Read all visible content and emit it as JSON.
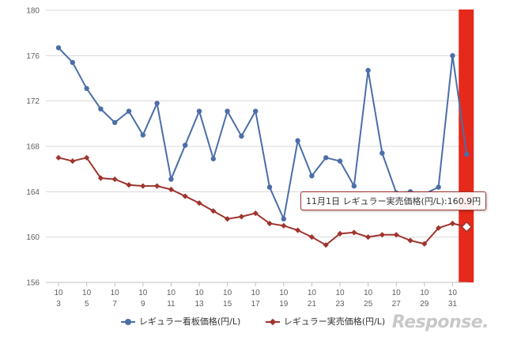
{
  "chart_data": {
    "type": "line",
    "title": "",
    "xlabel": "",
    "ylabel": "",
    "ylim": [
      156,
      180
    ],
    "yticks": [
      156,
      160,
      164,
      168,
      172,
      176,
      180
    ],
    "x_tick_labels": [
      {
        "month": "10",
        "day": "3"
      },
      {
        "month": "10",
        "day": "5"
      },
      {
        "month": "10",
        "day": "7"
      },
      {
        "month": "10",
        "day": "9"
      },
      {
        "month": "10",
        "day": "11"
      },
      {
        "month": "10",
        "day": "13"
      },
      {
        "month": "10",
        "day": "15"
      },
      {
        "month": "10",
        "day": "17"
      },
      {
        "month": "10",
        "day": "19"
      },
      {
        "month": "10",
        "day": "21"
      },
      {
        "month": "10",
        "day": "23"
      },
      {
        "month": "10",
        "day": "25"
      },
      {
        "month": "10",
        "day": "27"
      },
      {
        "month": "10",
        "day": "29"
      },
      {
        "month": "10",
        "day": "31"
      }
    ],
    "grid": true,
    "legend_position": "bottom",
    "series": [
      {
        "name": "レギュラー看板価格(円/L)",
        "color": "#4b6ea8",
        "marker": "circle",
        "values": [
          176.7,
          175.4,
          173.1,
          171.3,
          170.1,
          171.1,
          169.0,
          171.8,
          165.1,
          168.1,
          171.1,
          166.9,
          171.1,
          168.9,
          171.1,
          164.4,
          161.6,
          168.5,
          165.4,
          167.0,
          166.7,
          164.5,
          174.7,
          167.4,
          163.9,
          164.0,
          163.8,
          164.4,
          176.0,
          167.3
        ]
      },
      {
        "name": "レギュラー実売価格(円/L)",
        "color": "#a0342f",
        "marker": "diamond",
        "values": [
          167.0,
          166.7,
          167.0,
          165.2,
          165.1,
          164.6,
          164.5,
          164.5,
          164.2,
          163.6,
          163.0,
          162.3,
          161.6,
          161.8,
          162.1,
          161.2,
          161.0,
          160.6,
          160.0,
          159.3,
          160.3,
          160.4,
          160.0,
          160.2,
          160.2,
          159.7,
          159.4,
          160.8,
          161.2,
          160.9
        ]
      }
    ],
    "highlight": {
      "color": "#e5291b",
      "index": 29
    },
    "tooltip": {
      "text": "11月1日 レギュラー実売価格(円/L):160.9円",
      "series_index": 1,
      "point_index": 29
    }
  },
  "watermark": {
    "text": "Response."
  }
}
